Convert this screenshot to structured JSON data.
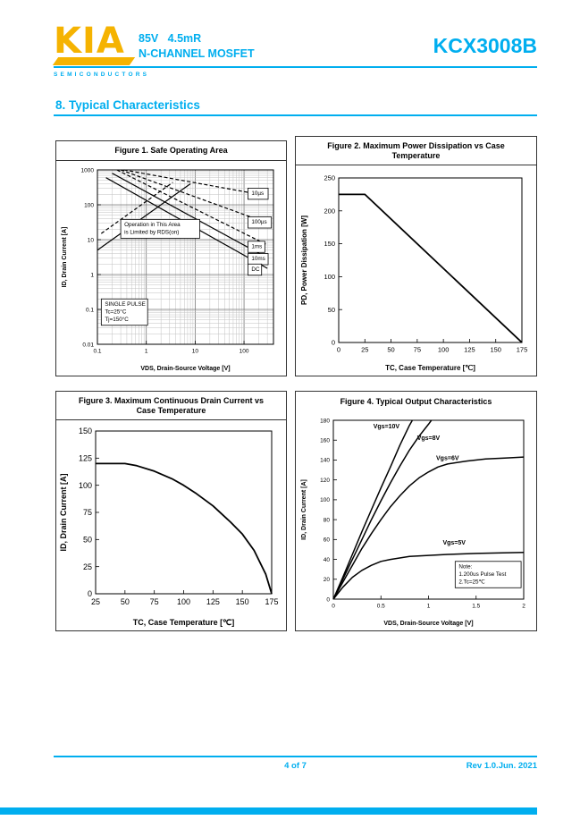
{
  "header": {
    "logo_text": "KIA",
    "logo_subtext": "SEMICONDUCTORS",
    "spec_line1": "85V   4.5mR",
    "spec_line2": "N-CHANNEL MOSFET",
    "part_number": "KCX3008B"
  },
  "section": {
    "number_title": "8.  Typical Characteristics"
  },
  "footer": {
    "page_indicator": "4 of 7",
    "revision": "Rev 1.0.Jun. 2021"
  },
  "colors": {
    "accent": "#00AEEF",
    "logo_yellow": "#F5B301"
  },
  "chart_data": [
    {
      "id": "fig1",
      "type": "line",
      "title": "Figure 1. Safe Operating Area",
      "xscale": "log",
      "yscale": "log",
      "xlim": [
        0.1,
        400
      ],
      "ylim": [
        0.01,
        1000
      ],
      "xticks": [
        0.1,
        1,
        10,
        100
      ],
      "yticks": [
        0.01,
        0.1,
        1,
        10,
        100,
        1000
      ],
      "xlabel": "VDS, Drain-Source Voltage [V]",
      "ylabel": "ID, Drain Current [A]",
      "grid": "log",
      "series": [
        {
          "name": "rdson-limit-solid",
          "dash": false,
          "points": [
            [
              0.1,
              5
            ],
            [
              8,
              400
            ]
          ]
        },
        {
          "name": "rdson-limit-dashed",
          "dash": true,
          "points": [
            [
              0.12,
              15
            ],
            [
              3.5,
              440
            ]
          ]
        },
        {
          "name": "pulse-10us",
          "dash": true,
          "points": [
            [
              0.35,
              1000
            ],
            [
              300,
              180
            ]
          ]
        },
        {
          "name": "pulse-100us",
          "dash": true,
          "points": [
            [
              0.3,
              1000
            ],
            [
              300,
              30
            ]
          ]
        },
        {
          "name": "pulse-1ms",
          "dash": true,
          "points": [
            [
              0.25,
              1000
            ],
            [
              300,
              7
            ]
          ]
        },
        {
          "name": "pulse-10ms",
          "dash": false,
          "points": [
            [
              0.2,
              800
            ],
            [
              300,
              3
            ]
          ]
        },
        {
          "name": "dc",
          "dash": false,
          "points": [
            [
              0.15,
              600
            ],
            [
              300,
              1.5
            ]
          ]
        }
      ],
      "labels": [
        {
          "lines": [
            "10µs"
          ],
          "x": 120,
          "y": 300,
          "boxed": true
        },
        {
          "lines": [
            "100µs"
          ],
          "x": 120,
          "y": 45,
          "boxed": true
        },
        {
          "lines": [
            "1ms"
          ],
          "x": 120,
          "y": 9,
          "boxed": true
        },
        {
          "lines": [
            "10ms"
          ],
          "x": 120,
          "y": 4,
          "boxed": true
        },
        {
          "lines": [
            "DC"
          ],
          "x": 120,
          "y": 2,
          "boxed": true
        },
        {
          "lines": [
            "Operation in This Area",
            "is Limited by RDS(on)"
          ],
          "x": 0.3,
          "y": 38,
          "boxed": true
        },
        {
          "lines": [
            "SINGLE PULSE",
            "Tc=25°C",
            "Tj=150°C"
          ],
          "x": 0.12,
          "y": 0.2,
          "boxed": true
        }
      ]
    },
    {
      "id": "fig2",
      "type": "line",
      "title": "Figure 2. Maximum Power Dissipation vs Case Temperature",
      "xscale": "linear",
      "yscale": "linear",
      "xlim": [
        0,
        175
      ],
      "ylim": [
        0,
        250
      ],
      "xticks": [
        0,
        25,
        50,
        75,
        100,
        125,
        150,
        175
      ],
      "yticks": [
        0,
        50,
        100,
        150,
        200,
        250
      ],
      "xlabel": "TC, Case Temperature [℃]",
      "ylabel": "PD, Power Dissipation [W]",
      "grid": "none",
      "series": [
        {
          "name": "pd-vs-tc",
          "dash": false,
          "points": [
            [
              0,
              225
            ],
            [
              25,
              225
            ],
            [
              175,
              0
            ]
          ]
        }
      ],
      "labels": []
    },
    {
      "id": "fig3",
      "type": "line",
      "title": "Figure 3. Maximum Continuous Drain Current vs Case Temperature",
      "xscale": "linear",
      "yscale": "linear",
      "xlim": [
        25,
        175
      ],
      "ylim": [
        0,
        150
      ],
      "xticks": [
        25,
        50,
        75,
        100,
        125,
        150,
        175
      ],
      "yticks": [
        0,
        25,
        50,
        75,
        100,
        125,
        150
      ],
      "xlabel": "TC, Case Temperature [℃]",
      "ylabel": "ID, Drain Current [A]",
      "grid": "none",
      "series": [
        {
          "name": "id-vs-tc",
          "dash": false,
          "points": [
            [
              25,
              120
            ],
            [
              50,
              120
            ],
            [
              60,
              118
            ],
            [
              75,
              113
            ],
            [
              90,
              106
            ],
            [
              100,
              100
            ],
            [
              110,
              93
            ],
            [
              125,
              81
            ],
            [
              140,
              66
            ],
            [
              150,
              55
            ],
            [
              160,
              40
            ],
            [
              170,
              18
            ],
            [
              175,
              0
            ]
          ]
        }
      ],
      "labels": []
    },
    {
      "id": "fig4",
      "type": "line",
      "title": "Figure 4. Typical Output Characteristics",
      "xscale": "linear",
      "yscale": "linear",
      "xlim": [
        0,
        2
      ],
      "ylim": [
        0,
        180
      ],
      "xticks": [
        0,
        0.5,
        1,
        1.5,
        2
      ],
      "yticks": [
        0,
        20,
        40,
        60,
        80,
        100,
        120,
        140,
        160,
        180
      ],
      "xlabel": "VDS, Drain-Source Voltage [V]",
      "ylabel": "ID, Drain Current [A]",
      "grid": "none",
      "series": [
        {
          "name": "vgs-10v",
          "dash": false,
          "points": [
            [
              0,
              0
            ],
            [
              0.1,
              22
            ],
            [
              0.2,
              45
            ],
            [
              0.3,
              68
            ],
            [
              0.4,
              90
            ],
            [
              0.5,
              112
            ],
            [
              0.6,
              133
            ],
            [
              0.7,
              155
            ],
            [
              0.8,
              175
            ],
            [
              0.83,
              180
            ]
          ]
        },
        {
          "name": "vgs-8v",
          "dash": false,
          "points": [
            [
              0,
              0
            ],
            [
              0.1,
              20
            ],
            [
              0.2,
              40
            ],
            [
              0.3,
              60
            ],
            [
              0.4,
              80
            ],
            [
              0.5,
              99
            ],
            [
              0.6,
              117
            ],
            [
              0.7,
              134
            ],
            [
              0.8,
              150
            ],
            [
              0.9,
              164
            ],
            [
              1.0,
              176
            ],
            [
              1.03,
              180
            ]
          ]
        },
        {
          "name": "vgs-6v",
          "dash": false,
          "points": [
            [
              0,
              0
            ],
            [
              0.1,
              17
            ],
            [
              0.2,
              34
            ],
            [
              0.3,
              51
            ],
            [
              0.4,
              66
            ],
            [
              0.5,
              80
            ],
            [
              0.6,
              93
            ],
            [
              0.7,
              104
            ],
            [
              0.8,
              114
            ],
            [
              0.9,
              122
            ],
            [
              1.0,
              128
            ],
            [
              1.1,
              133
            ],
            [
              1.2,
              136
            ],
            [
              1.4,
              139
            ],
            [
              1.6,
              141
            ],
            [
              1.8,
              142
            ],
            [
              2.0,
              143
            ]
          ]
        },
        {
          "name": "vgs-5v",
          "dash": false,
          "points": [
            [
              0,
              0
            ],
            [
              0.1,
              12
            ],
            [
              0.2,
              22
            ],
            [
              0.3,
              29
            ],
            [
              0.4,
              34
            ],
            [
              0.5,
              38
            ],
            [
              0.6,
              40
            ],
            [
              0.8,
              43
            ],
            [
              1.0,
              44
            ],
            [
              1.2,
              45
            ],
            [
              1.5,
              46
            ],
            [
              2.0,
              47
            ]
          ]
        }
      ],
      "labels": [
        {
          "lines": [
            "Vgs=10V"
          ],
          "x": 0.42,
          "y": 172,
          "boxed": false
        },
        {
          "lines": [
            "Vgs=8V"
          ],
          "x": 0.88,
          "y": 160,
          "boxed": false
        },
        {
          "lines": [
            "Vgs=6V"
          ],
          "x": 1.08,
          "y": 140,
          "boxed": false
        },
        {
          "lines": [
            "Vgs=5V"
          ],
          "x": 1.15,
          "y": 55,
          "boxed": false
        },
        {
          "lines": [
            "Note:",
            "1.200us Pulse Test",
            "2.Tc=25℃"
          ],
          "x": 1.28,
          "y": 38,
          "boxed": true
        }
      ]
    }
  ]
}
